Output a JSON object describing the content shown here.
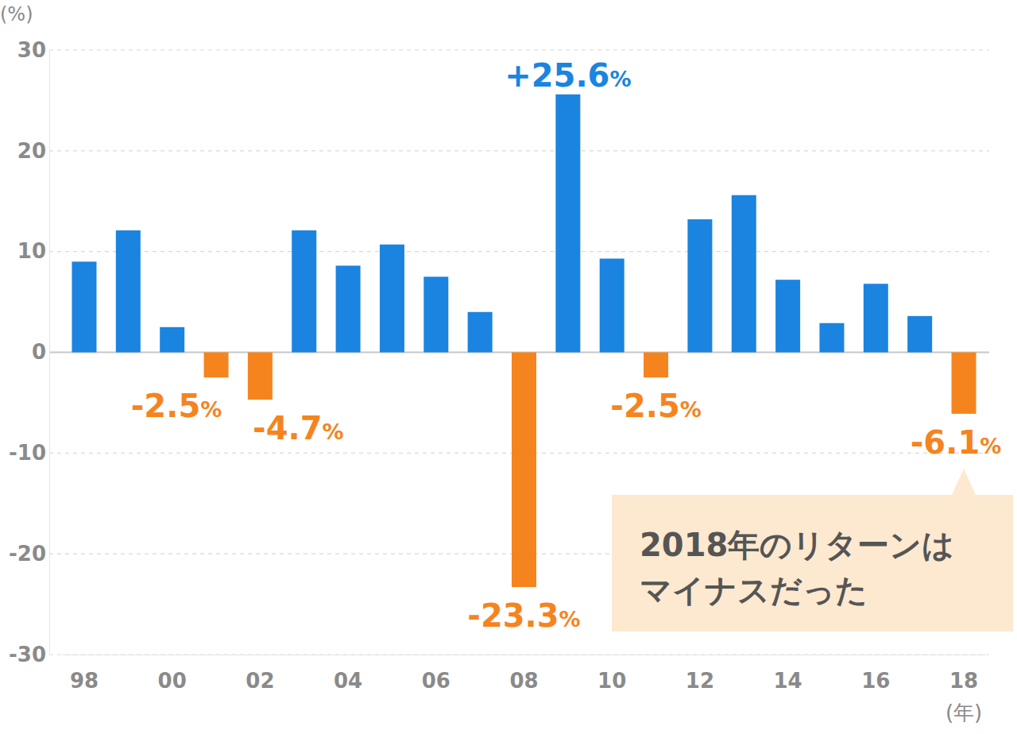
{
  "chart_data": {
    "type": "bar",
    "y_label": "(%)",
    "x_label": "(年)",
    "categories": [
      "98",
      null,
      "00",
      null,
      "02",
      null,
      "04",
      null,
      "06",
      null,
      "08",
      null,
      "10",
      null,
      "12",
      null,
      "14",
      null,
      "16",
      null,
      "18"
    ],
    "values": [
      9.0,
      12.1,
      2.5,
      -2.5,
      -4.7,
      12.1,
      8.6,
      10.7,
      7.5,
      4.0,
      -23.3,
      25.6,
      9.3,
      -2.5,
      13.2,
      15.6,
      7.2,
      2.9,
      6.8,
      3.6,
      -6.1
    ],
    "value_labels": [
      null,
      null,
      null,
      "-2.5%",
      "-4.7%",
      null,
      null,
      null,
      null,
      null,
      "-23.3%",
      "+25.6%",
      null,
      "-2.5%",
      null,
      null,
      null,
      null,
      null,
      null,
      "-6.1%"
    ],
    "colors": [
      "#1a84e0",
      "#1a84e0",
      "#1a84e0",
      "#f5841f",
      "#f5841f",
      "#1a84e0",
      "#1a84e0",
      "#1a84e0",
      "#1a84e0",
      "#1a84e0",
      "#f5841f",
      "#1a84e0",
      "#1a84e0",
      "#f5841f",
      "#1a84e0",
      "#1a84e0",
      "#1a84e0",
      "#1a84e0",
      "#1a84e0",
      "#1a84e0",
      "#f5841f"
    ],
    "data_labels": true,
    "annotation": [
      "2018年のリターンは",
      "マイナスだった"
    ],
    "ylim": [
      -30,
      30
    ],
    "yticks": [
      -30,
      -20,
      -10,
      0,
      10,
      20,
      30
    ],
    "grid": true
  }
}
